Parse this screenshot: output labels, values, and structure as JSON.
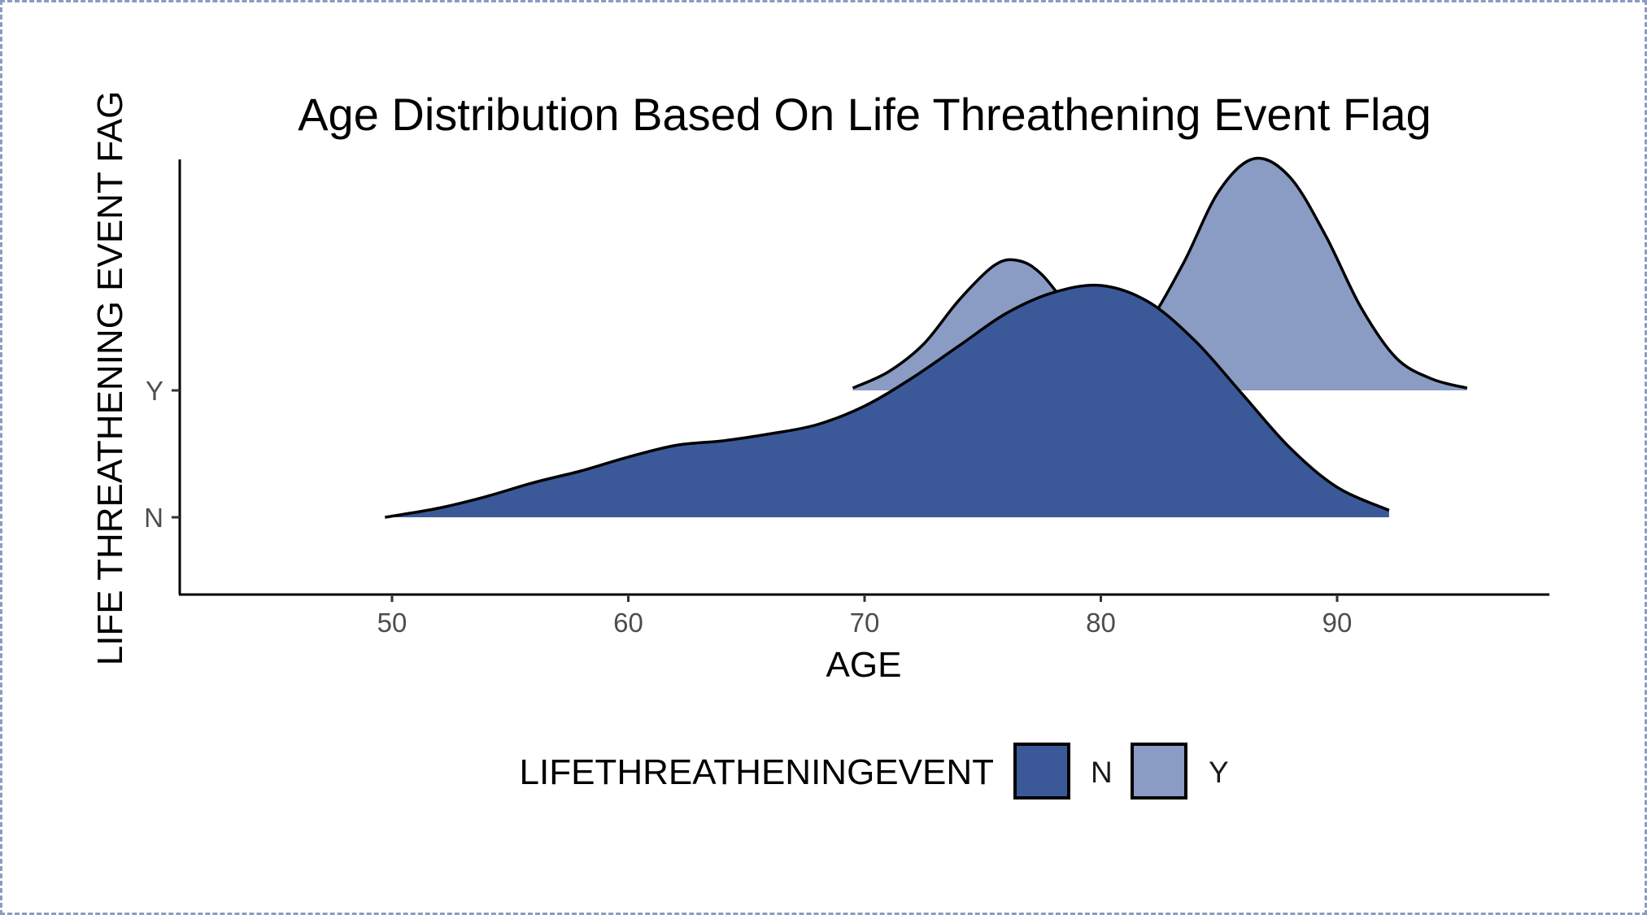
{
  "chart_data": {
    "type": "area",
    "subtype": "ridgeline-density",
    "title": "Age Distribution Based On Life Threathening Event Flag",
    "xlabel": "AGE",
    "ylabel": "LIFE THREATHENING EVENT FAG",
    "xlim": [
      41,
      98
    ],
    "x_ticks": [
      50,
      60,
      70,
      80,
      90
    ],
    "y_categories": [
      "N",
      "Y"
    ],
    "grid": false,
    "legend": {
      "title": "LIFETHREATHENINGEVENT",
      "position": "bottom",
      "entries": [
        {
          "label": "N",
          "color": "#3b5998"
        },
        {
          "label": "Y",
          "color": "#8a9cc4"
        }
      ]
    },
    "series": [
      {
        "name": "N",
        "color": "#3b5998",
        "x": [
          49.7,
          52,
          54,
          56,
          58,
          60,
          62,
          64,
          66,
          68,
          70,
          72,
          74,
          76,
          78,
          80,
          82,
          84,
          86,
          88,
          90,
          92.2
        ],
        "density": [
          0.0,
          0.04,
          0.09,
          0.15,
          0.2,
          0.26,
          0.31,
          0.33,
          0.36,
          0.4,
          0.48,
          0.6,
          0.74,
          0.88,
          0.97,
          1.0,
          0.93,
          0.76,
          0.53,
          0.3,
          0.13,
          0.03
        ]
      },
      {
        "name": "Y",
        "color": "#8a9cc4",
        "x": [
          69.5,
          71,
          72.5,
          74,
          75.5,
          76.5,
          77.5,
          79,
          80.5,
          81,
          82,
          83.5,
          85,
          86.5,
          88,
          89.5,
          91,
          92.5,
          94,
          95.5
        ],
        "density": [
          0.01,
          0.08,
          0.2,
          0.39,
          0.54,
          0.56,
          0.5,
          0.32,
          0.23,
          0.23,
          0.29,
          0.55,
          0.86,
          1.0,
          0.92,
          0.67,
          0.36,
          0.14,
          0.05,
          0.01
        ]
      }
    ]
  }
}
